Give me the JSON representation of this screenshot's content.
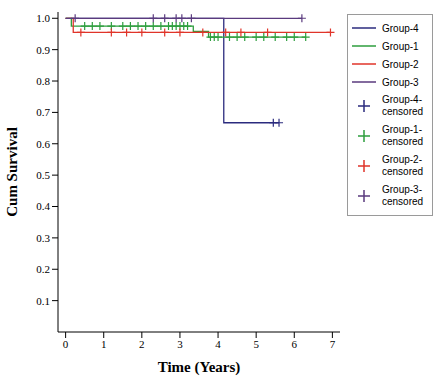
{
  "chart_data": {
    "type": "line",
    "x_label": "Time (Years)",
    "y_label": "Cum Survival",
    "xlim": [
      -0.2,
      7.2
    ],
    "xticks": [
      0,
      1,
      2,
      3,
      4,
      5,
      6,
      7
    ],
    "ylim": [
      0,
      1.02
    ],
    "yticks": [
      0.1,
      0.2,
      0.3,
      0.4,
      0.5,
      0.6,
      0.7,
      0.8,
      0.9,
      {
        "value": 1,
        "label": "1.0"
      }
    ],
    "grid": false,
    "legend": "right",
    "series": [
      {
        "name": "Group-4",
        "censored_name": "Group-4-censored",
        "color": "#2b2b7e",
        "line_style": "step",
        "marker": "cross",
        "x": [
          0,
          4.15,
          5.6
        ],
        "values": [
          1,
          0.667,
          0.667
        ],
        "censored": {
          "x": [
            5.45,
            5.6
          ],
          "values": [
            0.667,
            0.667
          ]
        }
      },
      {
        "name": "Group-1",
        "censored_name": "Group-1-censored",
        "color": "#2e9e3e",
        "line_style": "step",
        "marker": "cross",
        "x": [
          0,
          0.15,
          3.35,
          3.75,
          6.3
        ],
        "values": [
          1,
          0.975,
          0.958,
          0.94,
          0.94
        ],
        "censored": {
          "x": [
            0.5,
            0.7,
            0.9,
            1.2,
            1.5,
            1.7,
            1.9,
            2.1,
            2.3,
            2.5,
            2.7,
            2.8,
            2.9,
            3.0,
            3.1,
            3.2,
            3.8,
            3.9,
            4.0,
            4.3,
            4.5,
            4.7,
            5.0,
            5.2,
            5.5,
            5.8,
            6.0,
            6.3
          ],
          "values": [
            0.975,
            0.975,
            0.975,
            0.975,
            0.975,
            0.975,
            0.975,
            0.975,
            0.975,
            0.975,
            0.975,
            0.975,
            0.975,
            0.975,
            0.975,
            0.975,
            0.94,
            0.94,
            0.94,
            0.94,
            0.94,
            0.94,
            0.94,
            0.94,
            0.94,
            0.94,
            0.94,
            0.94
          ]
        }
      },
      {
        "name": "Group-2",
        "censored_name": "Group-2-censored",
        "color": "#e0342a",
        "line_style": "step",
        "marker": "cross",
        "x": [
          0,
          0.2,
          6.95
        ],
        "values": [
          1,
          0.955,
          0.955
        ],
        "censored": {
          "x": [
            0.4,
            1.2,
            1.6,
            2.0,
            2.6,
            3.0,
            3.6,
            4.2,
            4.6,
            5.3,
            6.95
          ],
          "values": [
            0.955,
            0.955,
            0.955,
            0.955,
            0.955,
            0.955,
            0.955,
            0.955,
            0.955,
            0.955,
            0.955
          ]
        }
      },
      {
        "name": "Group-3",
        "censored_name": "Group-3-censored",
        "color": "#5a3a7e",
        "line_style": "step",
        "marker": "cross",
        "x": [
          0,
          6.2
        ],
        "values": [
          1,
          1
        ],
        "censored": {
          "x": [
            0.25,
            2.3,
            2.6,
            2.9,
            3.05,
            3.3,
            6.2
          ],
          "values": [
            1,
            1,
            1,
            1,
            1,
            1,
            1
          ]
        }
      }
    ]
  }
}
